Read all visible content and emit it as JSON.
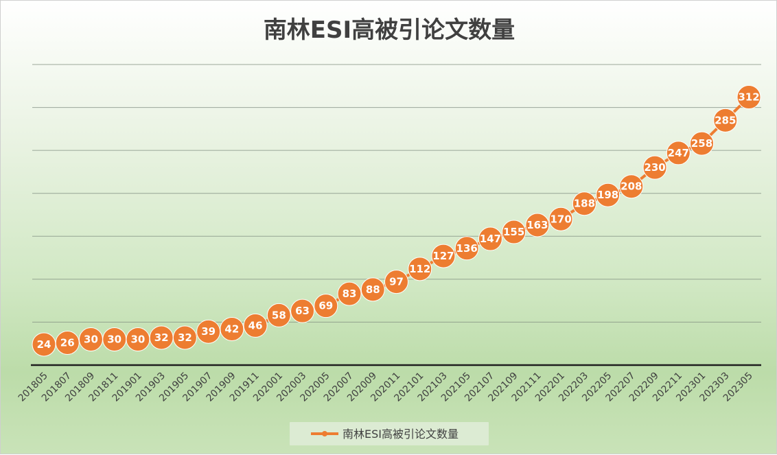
{
  "chart_data": {
    "type": "line",
    "title": "南林ESI高被引论文数量",
    "categories": [
      "201805",
      "201807",
      "201809",
      "201811",
      "201901",
      "201903",
      "201905",
      "201907",
      "201909",
      "201911",
      "202001",
      "202003",
      "202005",
      "202007",
      "202009",
      "202011",
      "202101",
      "202103",
      "202105",
      "202107",
      "202109",
      "202111",
      "202201",
      "202203",
      "202205",
      "202207",
      "202209",
      "202211",
      "202301",
      "202303",
      "202305"
    ],
    "series": [
      {
        "name": "南林ESI高被引论文数量",
        "values": [
          24,
          26,
          30,
          30,
          30,
          32,
          32,
          39,
          42,
          46,
          58,
          63,
          69,
          83,
          88,
          97,
          112,
          127,
          136,
          147,
          155,
          163,
          170,
          188,
          198,
          208,
          230,
          247,
          258,
          285,
          312
        ]
      }
    ],
    "ylim": [
      0,
      350
    ],
    "grid": true,
    "legend_position": "bottom",
    "data_labels": true,
    "colors": {
      "series": "#ed7d31",
      "label_text": "#ffffff"
    }
  }
}
